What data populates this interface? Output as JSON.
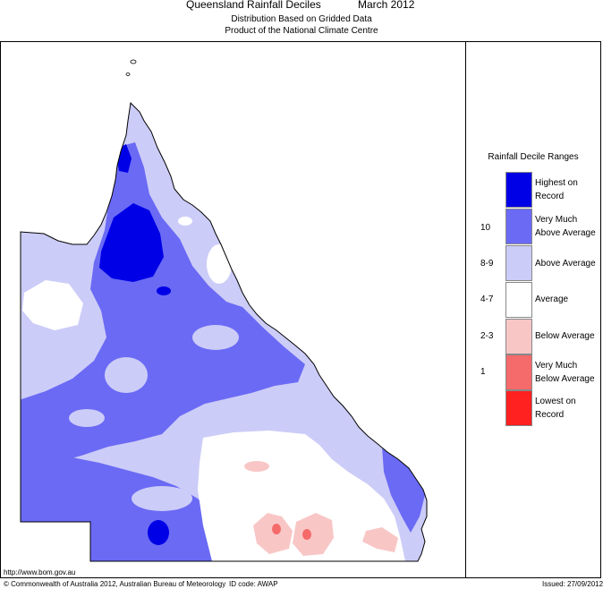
{
  "header": {
    "title": "Queensland Rainfall Deciles",
    "period": "March 2012",
    "subtitle_1": "Distribution Based on Gridded Data",
    "subtitle_2": "Product of the National Climate Centre"
  },
  "legend": {
    "title": "Rainfall Decile Ranges",
    "entries": [
      {
        "range": "",
        "label_1": "Highest on",
        "label_2": "Record",
        "color": "#0000e6"
      },
      {
        "range": "10",
        "label_1": "Very Much",
        "label_2": "Above Average",
        "color": "#6a6af5"
      },
      {
        "range": "8-9",
        "label_1": "Above Average",
        "label_2": "",
        "color": "#ccccf8"
      },
      {
        "range": "4-7",
        "label_1": "Average",
        "label_2": "",
        "color": "#ffffff"
      },
      {
        "range": "2-3",
        "label_1": "Below Average",
        "label_2": "",
        "color": "#f9c6c6"
      },
      {
        "range": "1",
        "label_1": "Very Much",
        "label_2": "Below Average",
        "color": "#f56a6a"
      },
      {
        "range": "",
        "label_1": "Lowest on",
        "label_2": "Record",
        "color": "#ff2020"
      }
    ]
  },
  "footer": {
    "url": "http://www.bom.gov.au",
    "copyright": "© Commonwealth of Australia 2012, Australian Bureau of Meteorology",
    "id_code": "ID code: AWAP",
    "issued": "Issued: 27/09/2012"
  }
}
